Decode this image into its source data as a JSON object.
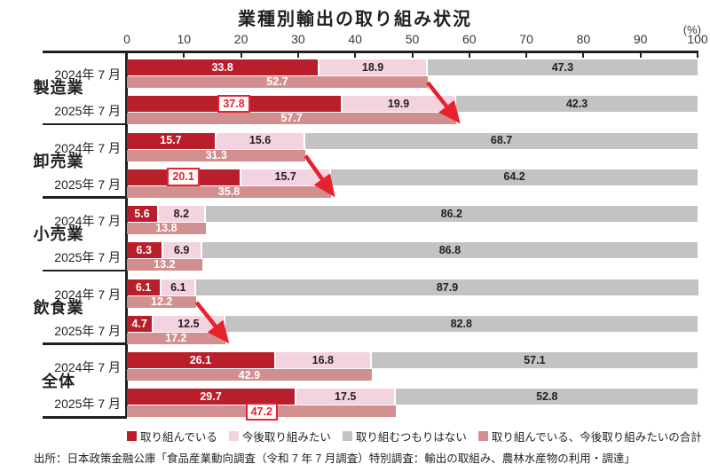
{
  "title": "業種別輸出の取り組み状況",
  "unit_label": "(%)",
  "source": "出所：日本政策金融公庫「食品産業動向調査（令和 7 年 7 月調査）特別調査：輸出の取組み、農林水産物の利用・調達」",
  "colors": {
    "engaged": "#b81f2b",
    "want_to": "#f3d3e0",
    "no_plan": "#c3c3c3",
    "total": "#d28f8f",
    "arrow": "#e8212e",
    "box_border": "#e8212e",
    "box_text": "#e8212e",
    "axis": "#231f20",
    "label_on_dark": "#ffffff",
    "label_on_light": "#231f20"
  },
  "legend": [
    {
      "label": "取り組んでいる",
      "color": "#b81f2b"
    },
    {
      "label": "今後取り組みたい",
      "color": "#f3d3e0"
    },
    {
      "label": "取り組むつもりはない",
      "color": "#c3c3c3"
    },
    {
      "label": "取り組んでいる、今後取り組みたいの合計",
      "color": "#d28f8f"
    }
  ],
  "chart_data": {
    "type": "bar",
    "orientation": "horizontal-stacked",
    "title": "業種別輸出の取り組み状況",
    "xlabel": "(%)",
    "x_axis": {
      "min": 0,
      "max": 100,
      "ticks": [
        0,
        10,
        20,
        30,
        40,
        50,
        60,
        70,
        80,
        90,
        100
      ]
    },
    "series_labels": [
      "取り組んでいる",
      "今後取り組みたい",
      "取り組むつもりはない"
    ],
    "total_series_label": "取り組んでいる、今後取り組みたいの合計",
    "groups": [
      {
        "label": "製造業",
        "rows": [
          {
            "label": "2024年 7 月",
            "values": [
              33.8,
              18.9,
              47.3
            ],
            "total": 52.7,
            "boxed": null
          },
          {
            "label": "2025年 7 月",
            "values": [
              37.8,
              19.9,
              42.3
            ],
            "total": 57.7,
            "boxed": "seg0"
          }
        ]
      },
      {
        "label": "卸売業",
        "rows": [
          {
            "label": "2024年 7 月",
            "values": [
              15.7,
              15.6,
              68.7
            ],
            "total": 31.3,
            "boxed": null
          },
          {
            "label": "2025年 7 月",
            "values": [
              20.1,
              15.7,
              64.2
            ],
            "total": 35.8,
            "boxed": "seg0"
          }
        ]
      },
      {
        "label": "小売業",
        "rows": [
          {
            "label": "2024年 7 月",
            "values": [
              5.6,
              8.2,
              86.2
            ],
            "total": 13.8,
            "boxed": null
          },
          {
            "label": "2025年 7 月",
            "values": [
              6.3,
              6.9,
              86.8
            ],
            "total": 13.2,
            "boxed": null
          }
        ]
      },
      {
        "label": "飲食業",
        "rows": [
          {
            "label": "2024年 7 月",
            "values": [
              6.1,
              6.1,
              87.9
            ],
            "total": 12.2,
            "boxed": null
          },
          {
            "label": "2025年 7 月",
            "values": [
              4.7,
              12.5,
              82.8
            ],
            "total": 17.2,
            "boxed": null
          }
        ]
      },
      {
        "label": "全体",
        "rows": [
          {
            "label": "2024年 7 月",
            "values": [
              26.1,
              16.8,
              57.1
            ],
            "total": 42.9,
            "boxed": null
          },
          {
            "label": "2025年 7 月",
            "values": [
              29.7,
              17.5,
              52.8
            ],
            "total": 47.2,
            "boxed": "total"
          }
        ]
      }
    ],
    "arrows": [
      {
        "group": 0,
        "from_total": 52.7,
        "to_total": 57.7
      },
      {
        "group": 1,
        "from_total": 31.3,
        "to_total": 35.8
      },
      {
        "group": 3,
        "from_total": 12.2,
        "to_total": 17.2
      }
    ]
  }
}
